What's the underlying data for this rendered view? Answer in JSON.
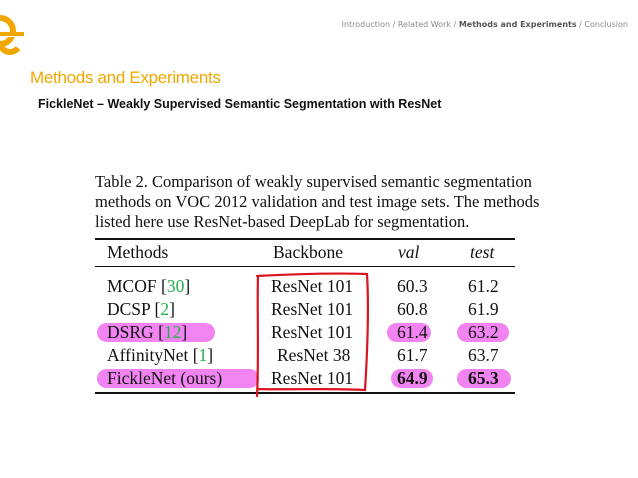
{
  "header": {
    "breadcrumb": [
      "Introduction",
      "/ Related Work /",
      "Methods and Experiments",
      "/ Conclusion"
    ]
  },
  "slide": {
    "title": "Methods and Experiments",
    "subtitle": "FickleNet – Weakly Supervised Semantic Segmentation with ResNet"
  },
  "table": {
    "caption": "Table 2. Comparison of weakly supervised semantic segmentation methods on VOC 2012 validation and test image sets. The methods listed here use ResNet-based DeepLab for segmentation.",
    "columns": [
      "Methods",
      "Backbone",
      "val",
      "test"
    ],
    "rows": [
      {
        "method": "MCOF",
        "ref": "30",
        "backbone": "ResNet 101",
        "val": "60.3",
        "test": "61.2"
      },
      {
        "method": "DCSP",
        "ref": "2",
        "backbone": "ResNet 101",
        "val": "60.8",
        "test": "61.9"
      },
      {
        "method": "DSRG",
        "ref": "12",
        "backbone": "ResNet 101",
        "val": "61.4",
        "test": "63.2"
      },
      {
        "method": "AffinityNet",
        "ref": "1",
        "backbone": "ResNet 38",
        "val": "61.7",
        "test": "63.7"
      },
      {
        "method": "FickleNet (ours)",
        "ref": "",
        "backbone": "ResNet 101",
        "val": "64.9",
        "test": "65.3"
      }
    ]
  },
  "colors": {
    "accent": "#f0a800",
    "highlight": "#f06ef0",
    "annotation": "#d9141e",
    "reference": "#22b14c"
  }
}
